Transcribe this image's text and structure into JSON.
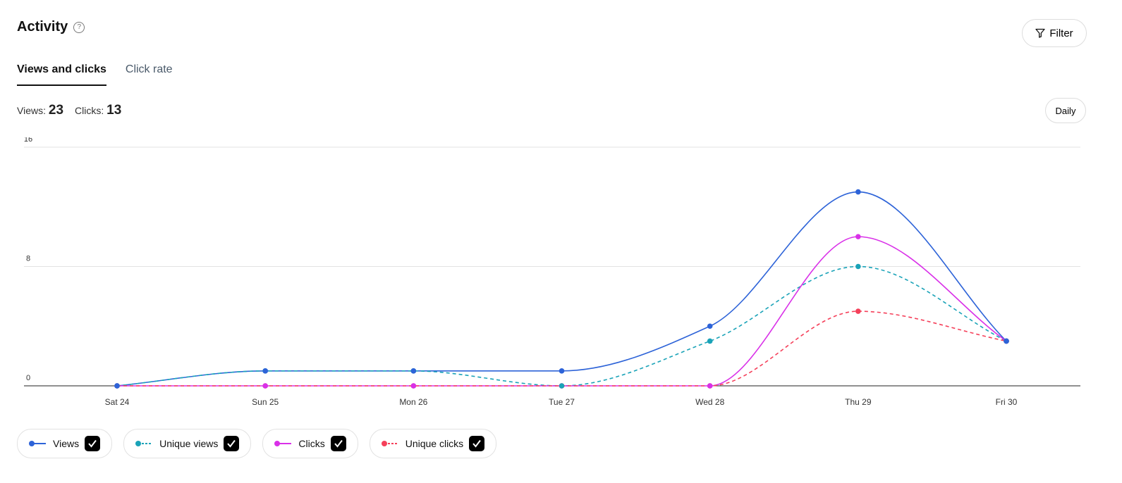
{
  "header": {
    "title": "Activity",
    "help_icon": "question-circle-icon",
    "filter_label": "Filter",
    "filter_icon": "funnel-icon"
  },
  "tabs": [
    {
      "label": "Views and clicks",
      "active": true
    },
    {
      "label": "Click rate",
      "active": false
    }
  ],
  "stats": {
    "views_label": "Views:",
    "views_value": "23",
    "clicks_label": "Clicks:",
    "clicks_value": "13"
  },
  "interval_label": "Daily",
  "chart_data": {
    "type": "line",
    "categories": [
      "Sat 24",
      "Sun 25",
      "Mon 26",
      "Tue 27",
      "Wed 28",
      "Thu 29",
      "Fri 30"
    ],
    "ylim": [
      0,
      16
    ],
    "yticks": [
      "0",
      "8",
      "16"
    ],
    "grid": true,
    "legend": "bottom-left",
    "series": [
      {
        "name": "Views",
        "values": [
          0,
          1,
          1,
          1,
          4,
          13,
          3
        ],
        "color": "#2d63d8",
        "dashed": false
      },
      {
        "name": "Unique views",
        "values": [
          0,
          1,
          1,
          0,
          3,
          8,
          3
        ],
        "color": "#1aa3b8",
        "dashed": true
      },
      {
        "name": "Clicks",
        "values": [
          0,
          0,
          0,
          0,
          0,
          10,
          3
        ],
        "color": "#d930e8",
        "dashed": false
      },
      {
        "name": "Unique clicks",
        "values": [
          0,
          0,
          0,
          0,
          0,
          5,
          3
        ],
        "color": "#f5405a",
        "dashed": true
      }
    ]
  }
}
